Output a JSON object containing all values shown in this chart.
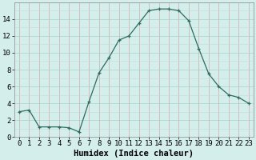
{
  "x": [
    0,
    1,
    2,
    3,
    4,
    5,
    6,
    7,
    8,
    9,
    10,
    11,
    12,
    13,
    14,
    15,
    16,
    17,
    18,
    19,
    20,
    21,
    22,
    23
  ],
  "y": [
    3,
    3.2,
    1.2,
    1.2,
    1.2,
    1.1,
    0.6,
    4.2,
    7.6,
    9.4,
    11.5,
    12.0,
    13.5,
    15.0,
    15.2,
    15.2,
    15.0,
    13.8,
    10.5,
    7.5,
    6.0,
    5.0,
    4.7,
    4.0
  ],
  "xlabel": "Humidex (Indice chaleur)",
  "line_color": "#2d6b5e",
  "marker_color": "#2d6b5e",
  "bg_color": "#d4eeec",
  "grid_color_major": "#c8b8b8",
  "grid_color_minor": "#c8e8e4",
  "xlim": [
    -0.5,
    23.5
  ],
  "ylim": [
    0,
    16
  ],
  "yticks": [
    0,
    2,
    4,
    6,
    8,
    10,
    12,
    14
  ],
  "xticks": [
    0,
    1,
    2,
    3,
    4,
    5,
    6,
    7,
    8,
    9,
    10,
    11,
    12,
    13,
    14,
    15,
    16,
    17,
    18,
    19,
    20,
    21,
    22,
    23
  ],
  "xlabel_fontsize": 7.5,
  "tick_fontsize": 6.5
}
